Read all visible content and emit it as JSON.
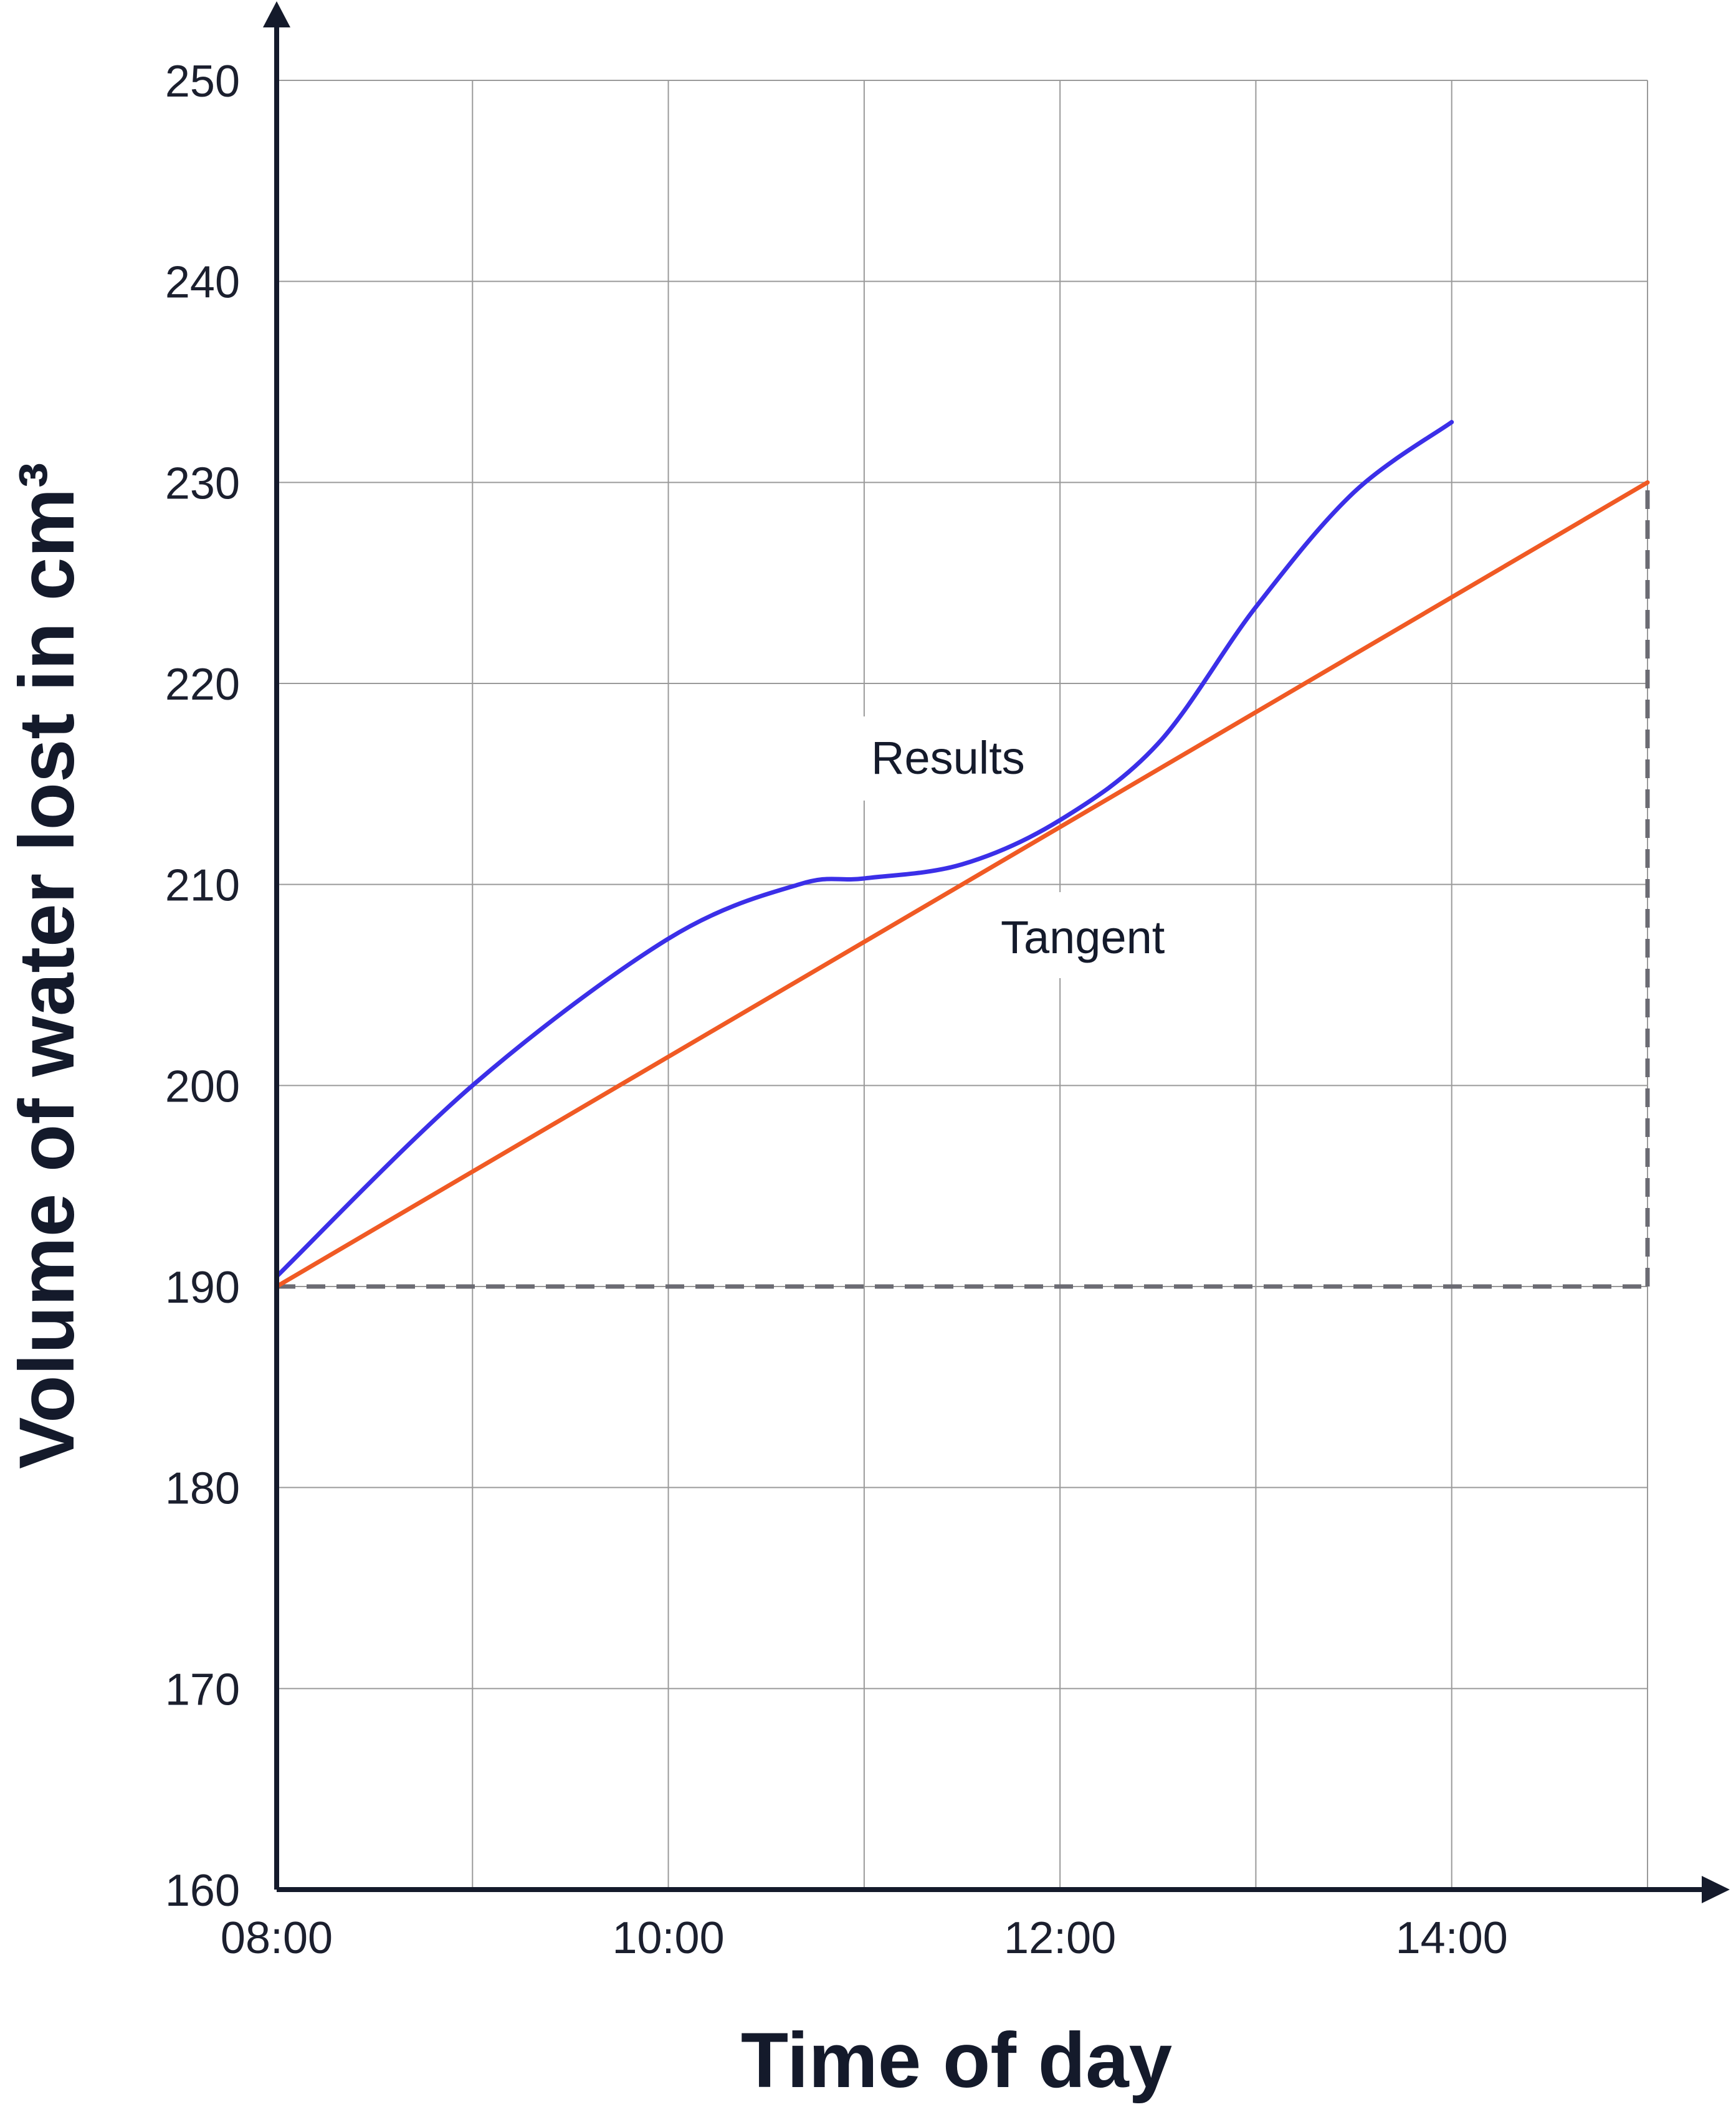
{
  "chart_data": {
    "type": "line",
    "xlabel": "Time of day",
    "ylabel": "Volume of water lost in cm³",
    "ylim": [
      160,
      250
    ],
    "yticks": [
      160,
      170,
      180,
      190,
      200,
      210,
      220,
      230,
      240,
      250
    ],
    "xlim": [
      "08:00",
      "15:00"
    ],
    "xtick_labels": [
      "08:00",
      "10:00",
      "12:00",
      "14:00"
    ],
    "grid": true,
    "colors": {
      "results": "#3b2fe8",
      "tangent": "#f05a24",
      "axis": "#141a2b",
      "grid": "#9a9a9a",
      "guide": "#6b6b73"
    },
    "series": [
      {
        "name": "Results",
        "x": [
          "08:00",
          "09:00",
          "10:00",
          "10:40",
          "11:00",
          "11:30",
          "12:00",
          "12:30",
          "13:00",
          "13:30",
          "14:00"
        ],
        "y": [
          190.5,
          200.0,
          207.3,
          210.0,
          210.3,
          211.0,
          213.2,
          217.0,
          223.8,
          229.5,
          233.0
        ]
      },
      {
        "name": "Tangent",
        "x": [
          "08:00",
          "15:00"
        ],
        "y": [
          190,
          230
        ]
      }
    ],
    "guides": [
      {
        "style": "dashed",
        "x": [
          "08:00",
          "15:00"
        ],
        "y": [
          190,
          190
        ]
      },
      {
        "style": "dashed",
        "x": [
          "15:00",
          "15:00"
        ],
        "y": [
          190,
          230
        ]
      }
    ]
  }
}
